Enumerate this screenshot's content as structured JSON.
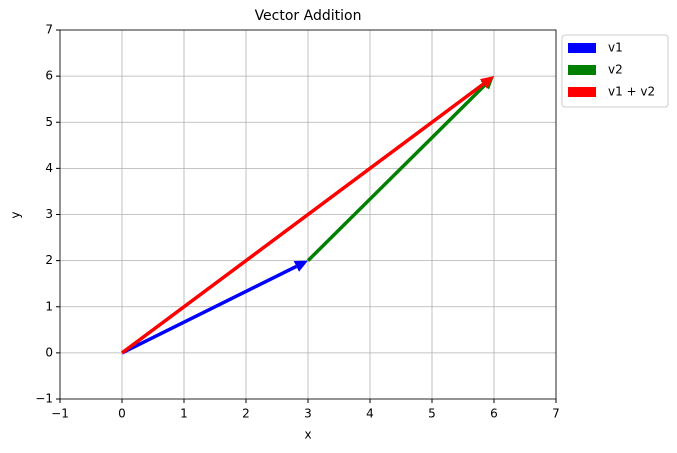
{
  "chart_data": {
    "type": "quiver",
    "title": "Vector Addition",
    "x_label": "x",
    "y_label": "y",
    "series": [
      {
        "name": "v1",
        "color": "#0000ff",
        "x": [
          0
        ],
        "y": [
          0
        ],
        "u": [
          3
        ],
        "v": [
          2
        ]
      },
      {
        "name": "v2",
        "color": "#008000",
        "x": [
          3
        ],
        "y": [
          2
        ],
        "u": [
          3
        ],
        "v": [
          4
        ]
      },
      {
        "name": "v1 + v2",
        "color": "#ff0000",
        "x": [
          0
        ],
        "y": [
          0
        ],
        "u": [
          6
        ],
        "v": [
          6
        ]
      }
    ],
    "xlim": [
      -1,
      7
    ],
    "ylim": [
      -1,
      7
    ],
    "xticks": [
      {
        "value": -1,
        "label": "−1"
      },
      0,
      1,
      2,
      3,
      4,
      5,
      6,
      7
    ],
    "yticks": [
      {
        "value": -1,
        "label": "−1"
      },
      0,
      1,
      2,
      3,
      4,
      5,
      6,
      7
    ],
    "grid": true,
    "legend": "outside upper right"
  }
}
